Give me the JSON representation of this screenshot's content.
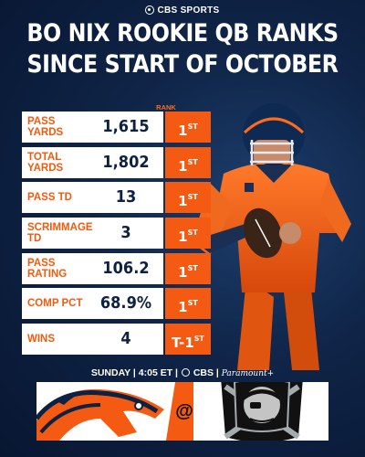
{
  "brand": "CBS SPORTS",
  "headline": {
    "line1": "BO NIX ROOKIE QB RANKS",
    "line2": "SINCE START OF OCTOBER"
  },
  "rank_header": "RANK",
  "rows": [
    {
      "stat": "PASS YARDS",
      "value": "1,615",
      "rank": "1",
      "suffix": "ST"
    },
    {
      "stat": "TOTAL YARDS",
      "value": "1,802",
      "rank": "1",
      "suffix": "ST"
    },
    {
      "stat": "PASS TD",
      "value": "13",
      "rank": "1",
      "suffix": "ST"
    },
    {
      "stat": "SCRIMMAGE TD",
      "value": "3",
      "rank": "1",
      "suffix": "ST"
    },
    {
      "stat": "PASS RATING",
      "value": "106.2",
      "rank": "1",
      "suffix": "ST"
    },
    {
      "stat": "COMP PCT",
      "value": "68.9%",
      "rank": "1",
      "suffix": "ST"
    },
    {
      "stat": "WINS",
      "value": "4",
      "rank": "T-1",
      "suffix": "ST"
    }
  ],
  "game": {
    "time": "SUNDAY | 4:05 ET |",
    "network": "CBS |",
    "streaming": "Paramount+"
  },
  "matchup": {
    "at_symbol": "@"
  },
  "colors": {
    "accent": "#f45a12",
    "navy": "#0d2142"
  }
}
